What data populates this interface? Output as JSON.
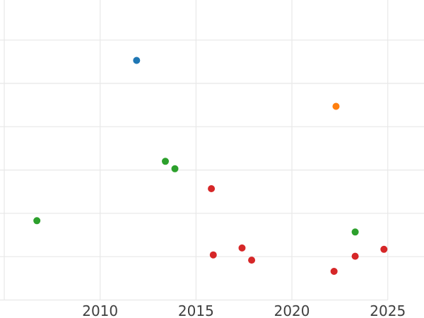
{
  "page": {
    "kind": "scatter-plot-screenshot",
    "background": "#ffffff"
  },
  "colors": {
    "blue": "#1f77b4",
    "orange": "#ff7f0e",
    "green": "#2ca02c",
    "red": "#d62728",
    "gridline": "#e8e8e8",
    "tick_label": "#3f3f3f"
  },
  "chart_data": {
    "type": "scatter",
    "title": "",
    "xlabel": "",
    "ylabel": "",
    "grid": true,
    "legend": "none",
    "x_tick_labels": [
      "2010",
      "2015",
      "2020",
      "2025"
    ],
    "x_gridline_years": [
      2005,
      2010,
      2015,
      2020,
      2025
    ],
    "y_gridline_units": [
      0,
      1,
      2,
      3,
      4,
      5,
      6
    ],
    "y_axis_labels_visible": false,
    "x_visible_range_years": [
      2004.8,
      2026.9
    ],
    "y_visible_range_units": [
      -0.42,
      6.93
    ],
    "marker_radius_px": 5,
    "series": [
      {
        "name": "series-blue",
        "color_key": "blue",
        "points": [
          [
            2011.9,
            5.53
          ]
        ]
      },
      {
        "name": "series-orange",
        "color_key": "orange",
        "points": [
          [
            2022.3,
            4.47
          ]
        ]
      },
      {
        "name": "series-green",
        "color_key": "green",
        "points": [
          [
            2006.7,
            1.83
          ],
          [
            2013.4,
            3.2
          ],
          [
            2013.9,
            3.03
          ],
          [
            2023.3,
            1.57
          ]
        ]
      },
      {
        "name": "series-red",
        "color_key": "red",
        "points": [
          [
            2015.8,
            2.57
          ],
          [
            2015.9,
            1.04
          ],
          [
            2017.4,
            1.2
          ],
          [
            2017.9,
            0.92
          ],
          [
            2022.2,
            0.66
          ],
          [
            2023.3,
            1.01
          ],
          [
            2024.8,
            1.17
          ]
        ]
      }
    ]
  }
}
